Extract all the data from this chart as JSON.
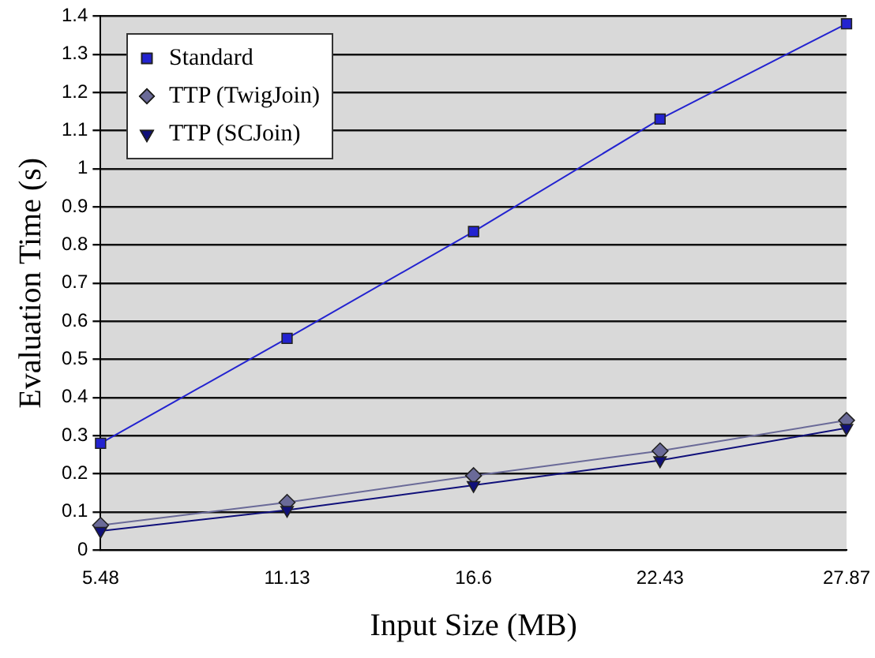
{
  "chart_data": {
    "type": "line",
    "xlabel": "Input Size (MB)",
    "ylabel": "Evaluation Time (s)",
    "categories": [
      "5.48",
      "11.13",
      "16.6",
      "22.43",
      "27.87"
    ],
    "series": [
      {
        "name": "Standard",
        "color": "#2323d0",
        "marker": "square",
        "values": [
          0.28,
          0.555,
          0.835,
          1.13,
          1.38
        ]
      },
      {
        "name": "TTP (TwigJoin)",
        "color": "#6a6a98",
        "marker": "diamond",
        "values": [
          0.065,
          0.125,
          0.195,
          0.26,
          0.34
        ]
      },
      {
        "name": "TTP (SCJoin)",
        "color": "#10107a",
        "marker": "triangle",
        "values": [
          0.05,
          0.105,
          0.17,
          0.235,
          0.32
        ]
      }
    ],
    "ylim": [
      0,
      1.4
    ],
    "yticks": [
      0,
      0.1,
      0.2,
      0.3,
      0.4,
      0.5,
      0.6,
      0.7,
      0.8,
      0.9,
      1,
      1.1,
      1.2,
      1.3,
      1.4
    ],
    "grid": "y",
    "legend": "top left"
  }
}
